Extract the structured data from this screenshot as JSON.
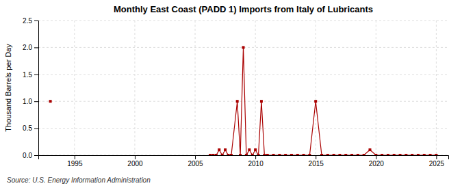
{
  "chart_data": {
    "type": "line",
    "title": "Monthly East Coast (PADD 1) Imports from Italy of Lubricants",
    "ylabel": "Thousand Barrels per Day",
    "annotations": [
      "Source: U.S. Energy Information Administration"
    ],
    "xlim": [
      1992,
      2026
    ],
    "ylim": [
      0,
      2.5
    ],
    "xticks": [
      1995,
      2000,
      2005,
      2010,
      2015,
      2020,
      2025
    ],
    "yticks": [
      {
        "value": 0.0,
        "label": "0.0"
      },
      0.5,
      {
        "value": 1.0,
        "label": "1.0"
      },
      {
        "value": 1.5,
        "label": "1.5"
      },
      {
        "value": 2.0,
        "label": "2.0"
      },
      2.5
    ],
    "grid": true,
    "series": [
      {
        "color": "#aa0000",
        "marker": "square",
        "line_style": "none",
        "x": [
          1993.0
        ],
        "values": [
          1.0
        ]
      },
      {
        "color": "#aa0000",
        "marker": "square",
        "line_style": "solid",
        "x": [
          2006.25,
          2006.5,
          2006.75,
          2007.0,
          2007.25,
          2007.5,
          2007.75,
          2008.0,
          2008.5,
          2008.75,
          2009.0,
          2009.25,
          2009.5,
          2009.75,
          2010.0,
          2010.25,
          2010.5,
          2010.75,
          2011.0,
          2011.5,
          2012.0,
          2012.5,
          2013.0,
          2013.5,
          2014.0,
          2014.5,
          2015.0,
          2015.5,
          2016.0,
          2016.5,
          2017.0,
          2017.5,
          2018.0,
          2018.5,
          2019.0,
          2019.5,
          2020.0,
          2020.5,
          2021.0,
          2021.5,
          2022.0,
          2022.5,
          2023.0,
          2023.5,
          2024.0,
          2024.5,
          2025.0
        ],
        "values": [
          0.0,
          0.0,
          0.0,
          0.1,
          0.0,
          0.1,
          0.0,
          0.0,
          1.0,
          0.0,
          2.0,
          0.0,
          0.1,
          0.0,
          0.1,
          0.0,
          1.0,
          0.0,
          0.0,
          0.0,
          0.0,
          0.0,
          0.0,
          0.0,
          0.0,
          0.0,
          1.0,
          0.0,
          0.0,
          0.0,
          0.0,
          0.0,
          0.0,
          0.0,
          0.0,
          0.1,
          0.0,
          0.0,
          0.0,
          0.0,
          0.0,
          0.0,
          0.0,
          0.0,
          0.0,
          0.0,
          0.0
        ]
      }
    ]
  }
}
